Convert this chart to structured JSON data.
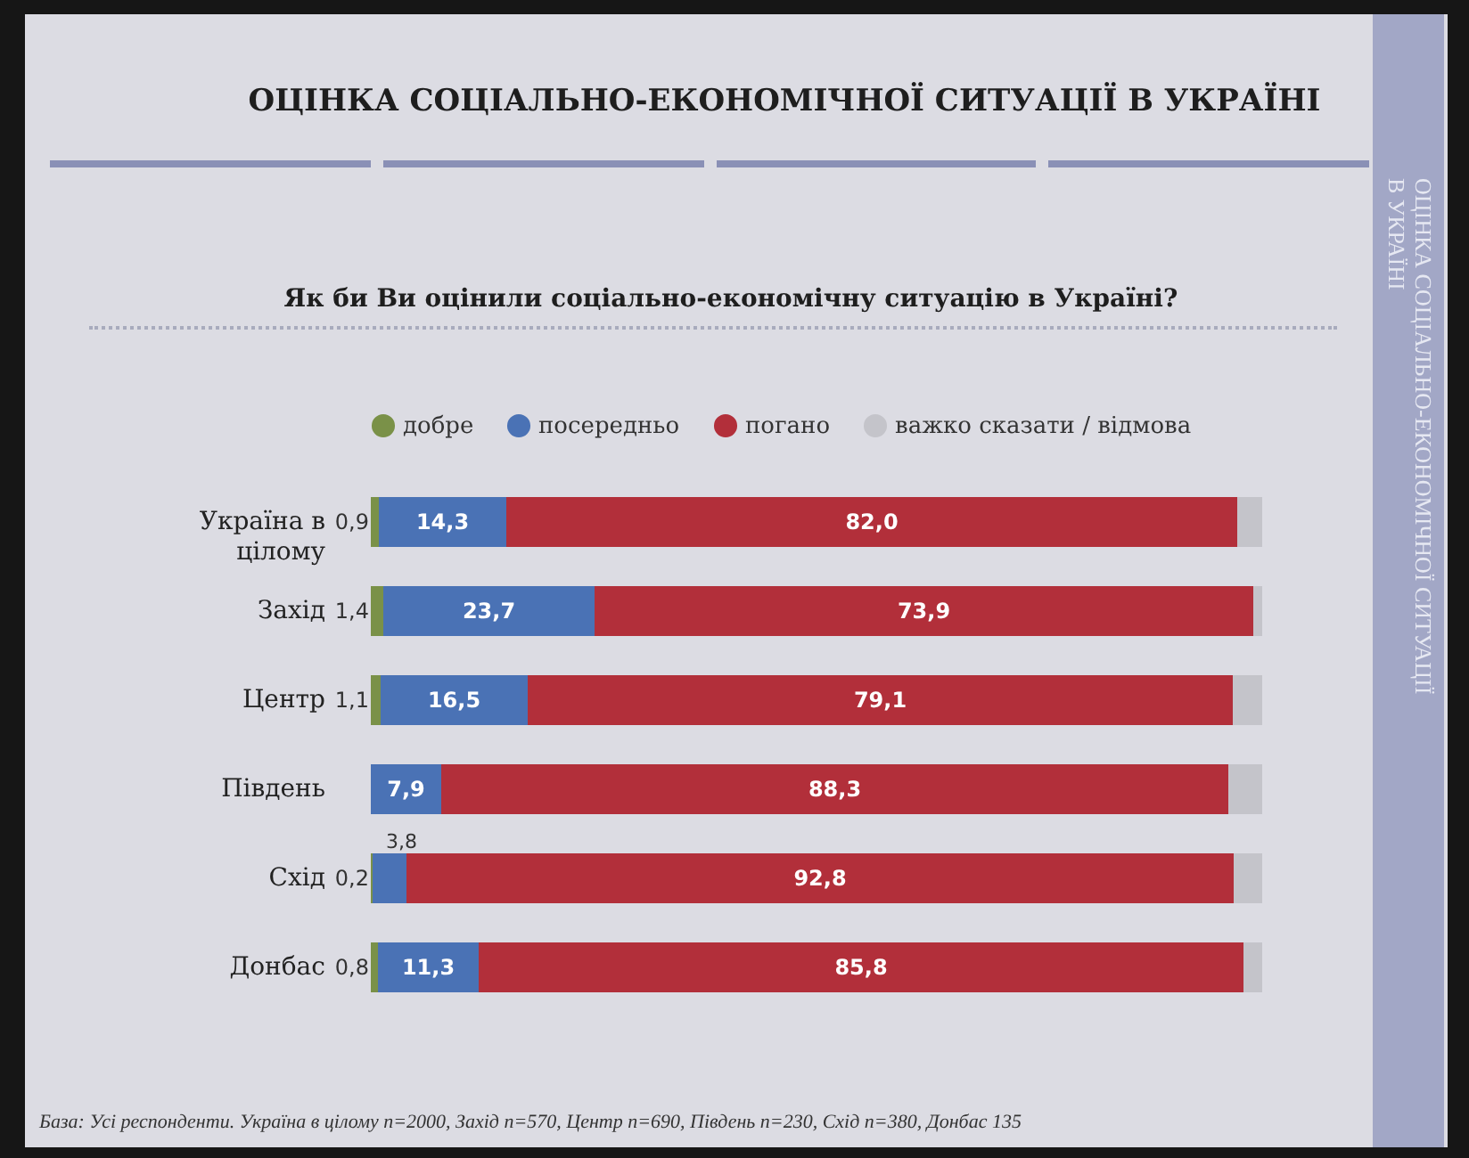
{
  "chart_data": {
    "type": "bar",
    "orientation": "horizontal",
    "stacked": true,
    "title": "ОЦІНКА СОЦІАЛЬНО-ЕКОНОМІЧНОЇ СИТУАЦІЇ В УКРАЇНІ",
    "subtitle": "Як би Ви оцінили соціально-економічну ситуацію в Україні?",
    "categories": [
      "Україна в цілому",
      "Захід",
      "Центр",
      "Південь",
      "Схід",
      "Донбас"
    ],
    "series": [
      {
        "name": "добре",
        "color": "#7a9148",
        "values": [
          0.9,
          1.4,
          1.1,
          null,
          0.2,
          0.8
        ],
        "value_labels": [
          "0,9",
          "1,4",
          "1,1",
          null,
          "0,2",
          "0,8"
        ]
      },
      {
        "name": "посередньо",
        "color": "#4a72b5",
        "values": [
          14.3,
          23.7,
          16.5,
          7.9,
          3.8,
          11.3
        ],
        "value_labels": [
          "14,3",
          "23,7",
          "16,5",
          "7,9",
          "3,8",
          "11,3"
        ]
      },
      {
        "name": "погано",
        "color": "#b22f3a",
        "values": [
          82.0,
          73.9,
          79.1,
          88.3,
          92.8,
          85.8
        ],
        "value_labels": [
          "82,0",
          "73,9",
          "79,1",
          "88,3",
          "92,8",
          "85,8"
        ]
      },
      {
        "name": "важко сказати / відмова",
        "color": "#c4c4ca",
        "values": [
          2.8,
          1.0,
          3.3,
          3.8,
          3.2,
          2.1
        ]
      }
    ],
    "legend": "top",
    "tick_labels": "y",
    "annotations": [
      "База: Усі респонденти. Україна в цілому n=2000, Захід n=570, Центр n=690, Південь n=230, Схід n=380, Донбас 135",
      "ОЦІНКА СОЦІАЛЬНО-ЕКОНОМІЧНОЇ СИТУАЦІЇ В УКРАЇНІ"
    ]
  }
}
